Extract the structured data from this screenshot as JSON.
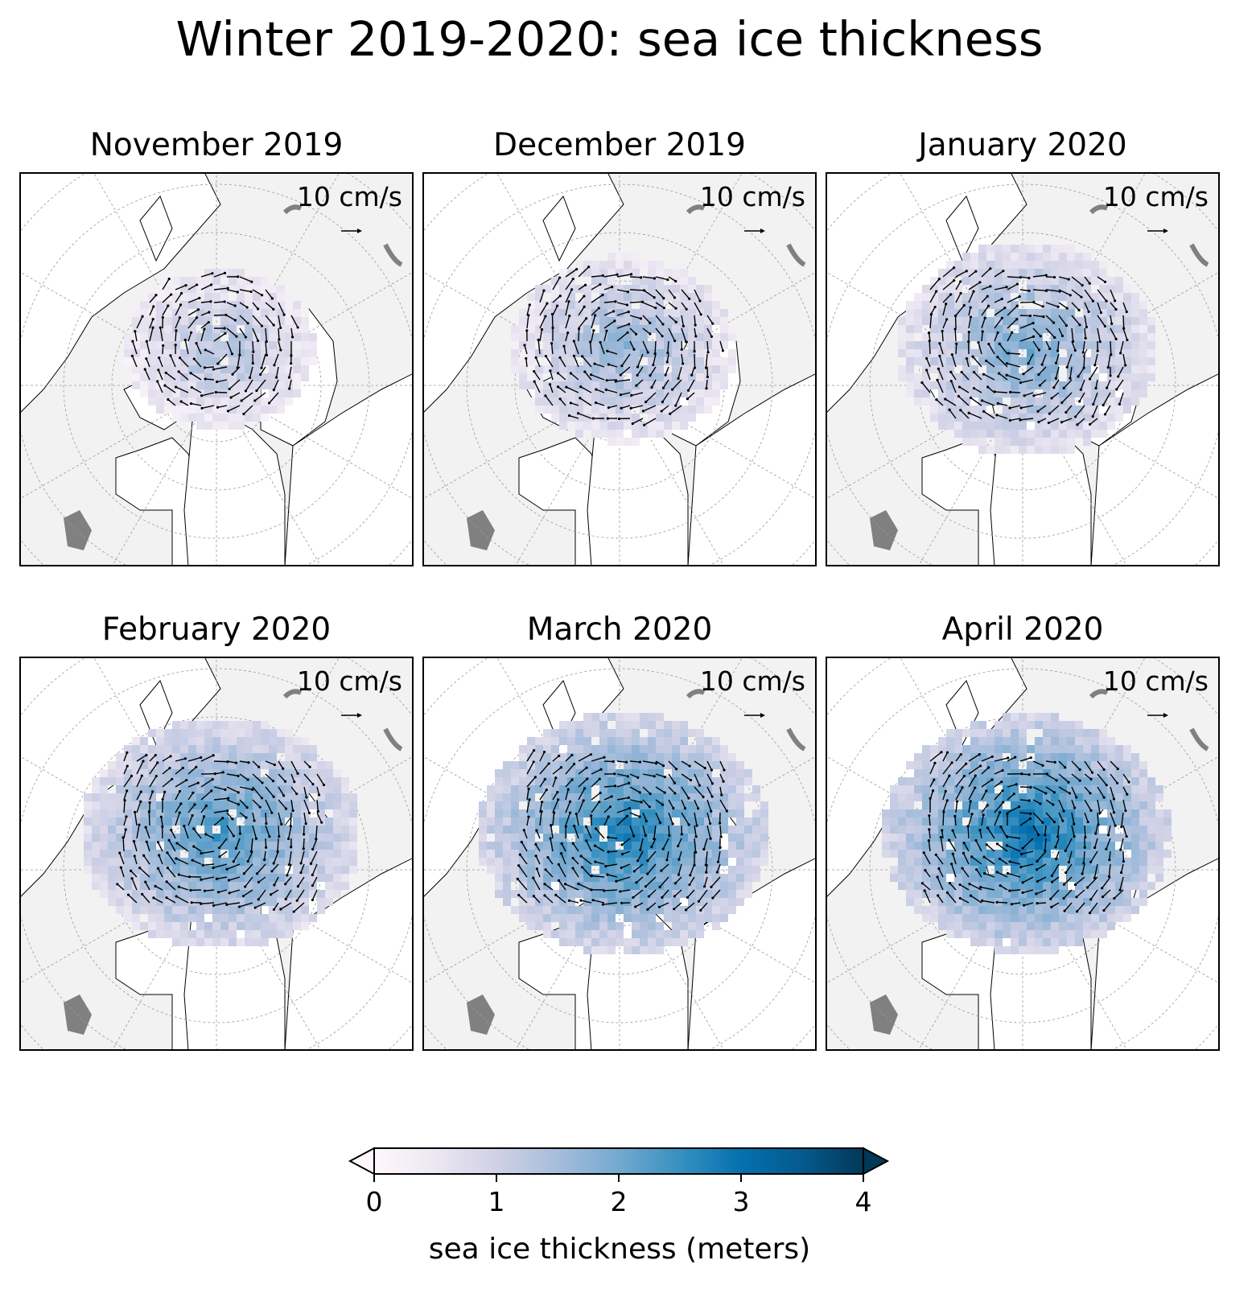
{
  "title": "Winter 2019-2020: sea ice thickness",
  "chart_data": {
    "type": "map",
    "projection": "north polar stereographic",
    "variable": "sea ice thickness",
    "units": "meters",
    "overlay": "ice drift vectors",
    "panels": [
      {
        "title": "November 2019",
        "vector_scale_label": "10 cm/s",
        "extent": 0.55,
        "thickness": 1.4
      },
      {
        "title": "December 2019",
        "vector_scale_label": "10 cm/s",
        "extent": 0.68,
        "thickness": 1.7
      },
      {
        "title": "January 2020",
        "vector_scale_label": "10 cm/s",
        "extent": 0.82,
        "thickness": 2.0
      },
      {
        "title": "February 2020",
        "vector_scale_label": "10 cm/s",
        "extent": 0.9,
        "thickness": 2.4
      },
      {
        "title": "March 2020",
        "vector_scale_label": "10 cm/s",
        "extent": 0.95,
        "thickness": 2.8
      },
      {
        "title": "April 2020",
        "vector_scale_label": "10 cm/s",
        "extent": 0.93,
        "thickness": 3.0
      }
    ],
    "colorbar": {
      "label": "sea ice thickness (meters)",
      "min": 0,
      "max": 4,
      "ticks": [
        "0",
        "1",
        "2",
        "3",
        "4"
      ],
      "extend": "both",
      "colormap": [
        "#fff7fb",
        "#ece7f2",
        "#d0d1e6",
        "#a6bddb",
        "#74a9cf",
        "#3690c0",
        "#0570b0",
        "#045a8d",
        "#023858"
      ]
    }
  }
}
